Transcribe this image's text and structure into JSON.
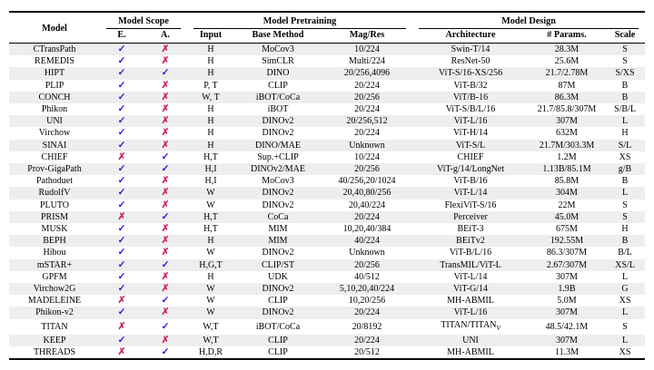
{
  "table": {
    "columns": {
      "model": "Model",
      "groups": [
        {
          "label": "Model Scope",
          "cols": [
            "E.",
            "A."
          ]
        },
        {
          "label": "Model Pretraining",
          "cols": [
            "Input",
            "Base Method",
            "Mag/Res"
          ]
        },
        {
          "label": "Model Design",
          "cols": [
            "Architecture",
            "# Params.",
            "Scale"
          ]
        }
      ]
    },
    "rows": [
      [
        "CTransPath",
        "check",
        "cross",
        "H",
        "MoCov3",
        "10/224",
        "Swin-T/14",
        "28.3M",
        "S"
      ],
      [
        "REMEDIS",
        "check",
        "cross",
        "H",
        "SimCLR",
        "Multi/224",
        "ResNet-50",
        "25.6M",
        "S"
      ],
      [
        "HIPT",
        "check",
        "check",
        "H",
        "DINO",
        "20/256,4096",
        "ViT-S/16-XS/256",
        "21.7/2.78M",
        "S/XS"
      ],
      [
        "PLIP",
        "check",
        "cross",
        "P, T",
        "CLIP",
        "20/224",
        "ViT-B/32",
        "87M",
        "B"
      ],
      [
        "CONCH",
        "check",
        "cross",
        "W, T",
        "iBOT/CoCa",
        "20/256",
        "ViT/B-16",
        "86.3M",
        "B"
      ],
      [
        "Phikon",
        "check",
        "cross",
        "H",
        "iBOT",
        "20/224",
        "ViT-S/B/L/16",
        "21.7/85.8/307M",
        "S/B/L"
      ],
      [
        "UNI",
        "check",
        "cross",
        "H",
        "DINOv2",
        "20/256,512",
        "ViT-L/16",
        "307M",
        "L"
      ],
      [
        "Virchow",
        "check",
        "cross",
        "H",
        "DINOv2",
        "20/224",
        "ViT-H/14",
        "632M",
        "H"
      ],
      [
        "SINAI",
        "check",
        "cross",
        "H",
        "DINO/MAE",
        "Unknown",
        "ViT-S/L",
        "21.7M/303.3M",
        "S/L"
      ],
      [
        "CHIEF",
        "cross",
        "check",
        "H,T",
        "Sup.+CLIP",
        "10/224",
        "CHIEF",
        "1.2M",
        "XS"
      ],
      [
        "Prov-GigaPath",
        "check",
        "check",
        "H,I",
        "DINOv2/MAE",
        "20/256",
        "ViT-g/14/LongNet",
        "1.13B/85.1M",
        "g/B"
      ],
      [
        "Pathoduet",
        "check",
        "cross",
        "H,I",
        "MoCov3",
        "40/256,20/1024",
        "ViT-B/16",
        "85.8M",
        "B"
      ],
      [
        "RudolfV",
        "check",
        "cross",
        "W",
        "DINOv2",
        "20,40,80/256",
        "ViT-L/14",
        "304M",
        "L"
      ],
      [
        "PLUTO",
        "check",
        "cross",
        "W",
        "DINOv2",
        "20,40/224",
        "FlexiViT-S/16",
        "22M",
        "S"
      ],
      [
        "PRISM",
        "cross",
        "check",
        "H,T",
        "CoCa",
        "20/224",
        "Perceiver",
        "45.0M",
        "S"
      ],
      [
        "MUSK",
        "check",
        "cross",
        "H,T",
        "MIM",
        "10,20,40/384",
        "BEiT-3",
        "675M",
        "H"
      ],
      [
        "BEPH",
        "check",
        "cross",
        "H",
        "MIM",
        "40/224",
        "BEiTv2",
        "192.55M",
        "B"
      ],
      [
        "Hibou",
        "check",
        "cross",
        "W",
        "DINOv2",
        "Unknown",
        "ViT-B/L/16",
        "86.3/307M",
        "B/L"
      ],
      [
        "mSTAR+",
        "check",
        "check",
        "H,G,T",
        "CLIP/ST",
        "20/256",
        "TransMIL/ViT-L",
        "2.67/307M",
        "XS/L"
      ],
      [
        "GPFM",
        "check",
        "cross",
        "H",
        "UDK",
        "40/512",
        "ViT-L/14",
        "307M",
        "L"
      ],
      [
        "Virchow2G",
        "check",
        "cross",
        "W",
        "DINOv2",
        "5,10,20,40/224",
        "ViT-G/14",
        "1.9B",
        "G"
      ],
      [
        "MADELEINE",
        "cross",
        "check",
        "W",
        "CLIP",
        "10,20/256",
        "MH-ABMIL",
        "5.0M",
        "XS"
      ],
      [
        "Phikon-v2",
        "check",
        "cross",
        "W",
        "DINOv2",
        "20/224",
        "ViT-L/16",
        "307M",
        "L"
      ],
      [
        "TITAN",
        "cross",
        "check",
        "W,T",
        "iBOT/CoCa",
        "20/8192",
        "TITAN/TITAN_V",
        "48.5/42.1M",
        "S"
      ],
      [
        "KEEP",
        "check",
        "cross",
        "W,T",
        "CLIP",
        "20/224",
        "UNI",
        "307M",
        "L"
      ],
      [
        "THREADS",
        "cross",
        "check",
        "H,D,R",
        "CLIP",
        "20/512",
        "MH-ABMIL",
        "11.3M",
        "XS"
      ]
    ]
  },
  "symbols": {
    "check": "✓",
    "cross": "✗"
  },
  "colors": {
    "check": "#1a1ae6",
    "cross": "#c9245f",
    "row_alt": "#eeeeee"
  }
}
